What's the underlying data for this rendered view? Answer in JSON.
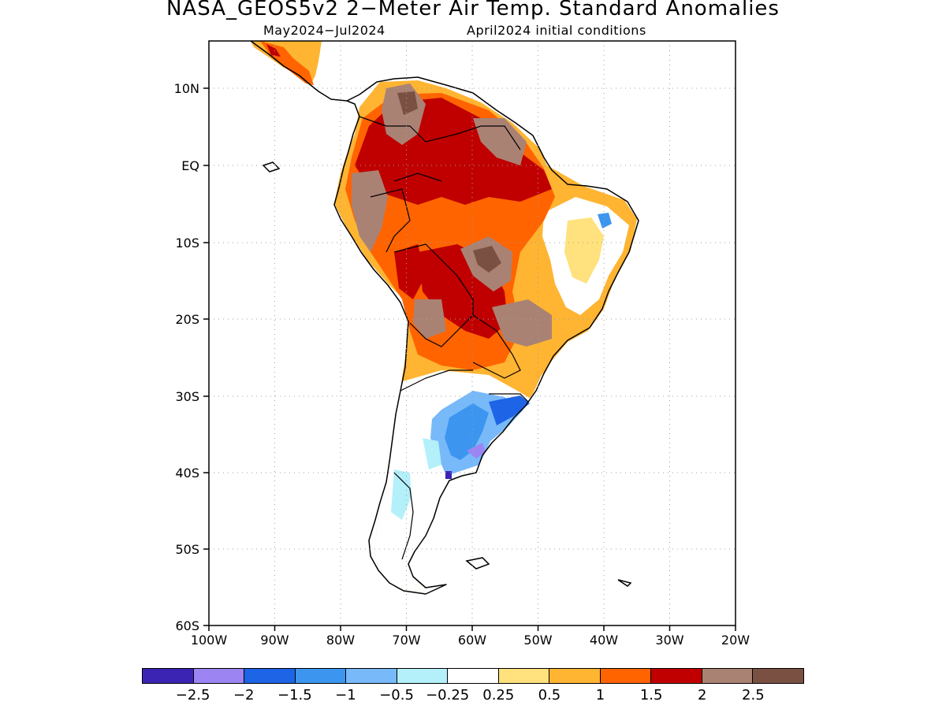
{
  "title": "NASA_GEOS5v2 2−Meter Air Temp. Standard Anomalies",
  "subtitle_left": "May2024−Jul2024",
  "subtitle_right": "April2024 initial conditions",
  "lat_labels": [
    "10N",
    "EQ",
    "10S",
    "20S",
    "30S",
    "40S",
    "50S",
    "60S"
  ],
  "lon_labels": [
    "100W",
    "90W",
    "80W",
    "70W",
    "60W",
    "50W",
    "40W",
    "30W",
    "20W"
  ],
  "legend": {
    "colors": [
      "#3b24b4",
      "#9c85f3",
      "#1e64e6",
      "#3c96f0",
      "#78b9fa",
      "#b4f0fa",
      "#ffffff",
      "#ffe17d",
      "#ffb432",
      "#ff6400",
      "#c00000",
      "#aa8274",
      "#7a5043"
    ],
    "labels": [
      "−2.5",
      "−2",
      "−1.5",
      "−1",
      "−0.5",
      "−0.25",
      "0.25",
      "0.5",
      "1",
      "1.5",
      "2",
      "2.5"
    ]
  }
}
